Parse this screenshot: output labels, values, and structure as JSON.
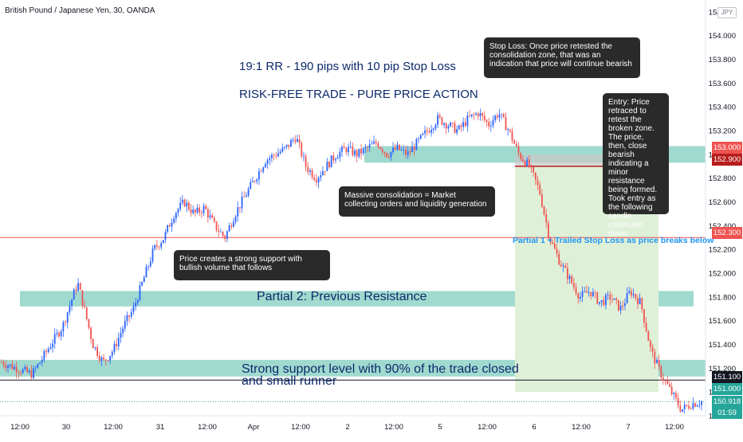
{
  "chart_title": "British Pound / Japanese Yen, 30, OANDA",
  "currency_badge": "JPY",
  "headline": [
    "19:1 RR - 190 pips with 10 pip Stop Loss",
    "RISK-FREE TRADE - PURE PRICE ACTION"
  ],
  "annotations": {
    "stop_loss": "Stop Loss: Once price retested the consolidation zone, that was an indication that price will continue bearish",
    "entry": "Entry: Price retraced to retest the broken zone. The price, then, close bearish indicating a minor resistance being formed. Took entry as the following candle continued down",
    "consolidation": "Massive consolidation = Market collecting orders and liquidity generation",
    "support": "Price creates a strong support with bullish volume that follows",
    "partial1": "Partial 1 + Trailed Stop Loss as price breaks below",
    "partial2": "Partial 2: Previous Resistance",
    "strong_support": "Strong support level with 90% of the trade closed and small runner"
  },
  "price_tags": {
    "stop": "153.000",
    "entry": "152.900",
    "line": "152.300",
    "bottom_line": "151.100",
    "target": "151.000",
    "current": "150.918",
    "countdown": "01:59"
  },
  "colors": {
    "up": "#26a69a",
    "down": "#ef5350",
    "candle_up": "#2962ff",
    "candle_down": "#ef5350",
    "zone": "#8fd3c7",
    "target_zone": "#dff0d8",
    "stop_zone": "#c8c8c8"
  },
  "chart_data": {
    "type": "candlestick",
    "title": "British Pound / Japanese Yen, 30, OANDA",
    "ylim": [
      150.8,
      154.3
    ],
    "y_ticks": [
      "154.200",
      "154.000",
      "153.800",
      "153.600",
      "153.400",
      "153.200",
      "153.000",
      "152.800",
      "152.600",
      "152.400",
      "152.200",
      "152.000",
      "151.800",
      "151.600",
      "151.400",
      "151.200",
      "151.000",
      "150.800"
    ],
    "x_ticks": [
      "12:00",
      "30",
      "12:00",
      "31",
      "12:00",
      "Apr",
      "12:00",
      "2",
      "12:00",
      "5",
      "12:00",
      "6",
      "12:00",
      "7",
      "12:00"
    ],
    "zones": [
      {
        "name": "consolidation",
        "low": 152.93,
        "high": 153.07
      },
      {
        "name": "Partial 2: Previous Resistance",
        "low": 151.72,
        "high": 151.85
      },
      {
        "name": "Strong support level",
        "low": 151.13,
        "high": 151.27
      }
    ],
    "lines": [
      152.3,
      151.1
    ],
    "trade": {
      "entry": 152.9,
      "stop": 153.0,
      "target": 151.0
    },
    "path": [
      [
        0,
        151.25
      ],
      [
        2,
        151.18
      ],
      [
        3,
        151.15
      ],
      [
        4,
        151.28
      ],
      [
        5,
        151.42
      ],
      [
        6,
        151.55
      ],
      [
        7,
        151.8
      ],
      [
        7.5,
        151.92
      ],
      [
        8,
        151.75
      ],
      [
        9,
        151.4
      ],
      [
        10,
        151.25
      ],
      [
        11,
        151.35
      ],
      [
        12,
        151.55
      ],
      [
        13,
        151.7
      ],
      [
        14,
        151.95
      ],
      [
        15,
        152.2
      ],
      [
        16,
        152.3
      ],
      [
        17,
        152.5
      ],
      [
        18,
        152.6
      ],
      [
        19,
        152.5
      ],
      [
        20,
        152.55
      ],
      [
        21,
        152.4
      ],
      [
        22,
        152.3
      ],
      [
        23,
        152.5
      ],
      [
        24,
        152.65
      ],
      [
        25,
        152.8
      ],
      [
        26,
        152.95
      ],
      [
        27,
        153.0
      ],
      [
        28,
        153.05
      ],
      [
        29,
        153.15
      ],
      [
        30,
        152.9
      ],
      [
        31,
        152.8
      ],
      [
        32,
        152.9
      ],
      [
        33,
        153.0
      ],
      [
        34,
        153.05
      ],
      [
        35,
        153.0
      ],
      [
        36,
        153.05
      ],
      [
        37,
        153.1
      ],
      [
        38,
        153.0
      ],
      [
        39,
        153.05
      ],
      [
        40,
        153.0
      ],
      [
        41,
        153.1
      ],
      [
        42,
        153.2
      ],
      [
        43,
        153.3
      ],
      [
        44,
        153.25
      ],
      [
        45,
        153.2
      ],
      [
        46,
        153.3
      ],
      [
        47,
        153.35
      ],
      [
        48,
        153.25
      ],
      [
        49,
        153.35
      ],
      [
        50,
        153.2
      ],
      [
        51,
        153.0
      ],
      [
        52,
        152.9
      ],
      [
        53,
        152.7
      ],
      [
        54,
        152.3
      ],
      [
        55,
        152.1
      ],
      [
        56,
        151.95
      ],
      [
        57,
        151.8
      ],
      [
        58,
        151.85
      ],
      [
        59,
        151.75
      ],
      [
        60,
        151.8
      ],
      [
        61,
        151.7
      ],
      [
        62,
        151.85
      ],
      [
        63,
        151.75
      ],
      [
        64,
        151.35
      ],
      [
        65,
        151.15
      ],
      [
        66,
        151.0
      ],
      [
        67,
        150.85
      ],
      [
        68,
        150.9
      ],
      [
        69,
        150.92
      ]
    ]
  }
}
